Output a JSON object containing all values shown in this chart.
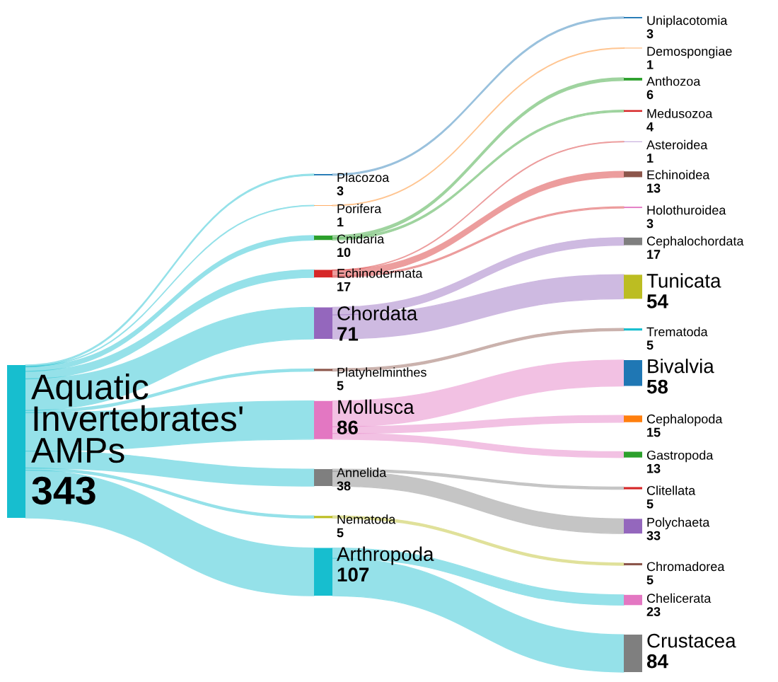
{
  "chart_data": {
    "type": "other",
    "categories": [
      "Aquatic Invertebrates' AMPs",
      "Placozoa",
      "Porifera",
      "Cnidaria",
      "Echinodermata",
      "Chordata",
      "Platyhelminthes",
      "Mollusca",
      "Annelida",
      "Nematoda",
      "Arthropoda",
      "Uniplacotomia",
      "Demospongiae",
      "Anthozoa",
      "Medusozoa",
      "Asteroidea",
      "Echinoidea",
      "Holothuroidea",
      "Cephalochordata",
      "Tunicata",
      "Trematoda",
      "Bivalvia",
      "Cephalopoda",
      "Gastropoda",
      "Clitellata",
      "Polychaeta",
      "Chromadorea",
      "Chelicerata",
      "Crustacea"
    ],
    "values": [
      343,
      3,
      1,
      10,
      17,
      71,
      5,
      86,
      38,
      5,
      107,
      3,
      1,
      6,
      4,
      1,
      13,
      3,
      17,
      54,
      5,
      58,
      15,
      13,
      5,
      33,
      5,
      23,
      84
    ],
    "colors": [
      "#17becf",
      "#1f77b4",
      "#ff7f0e",
      "#2ca02c",
      "#d62728",
      "#9467bd",
      "#8c564b",
      "#e377c2",
      "#7f7f7f",
      "#bcbd22",
      "#17becf",
      "#1f77b4",
      "#ff7f0e",
      "#2ca02c",
      "#d62728",
      "#9467bd",
      "#8c564b",
      "#e377c2",
      "#7f7f7f",
      "#bcbd22",
      "#17becf",
      "#1f77b4",
      "#ff7f0e",
      "#2ca02c",
      "#d62728",
      "#9467bd",
      "#8c564b",
      "#e377c2",
      "#7f7f7f"
    ],
    "data_labels": true
  }
}
